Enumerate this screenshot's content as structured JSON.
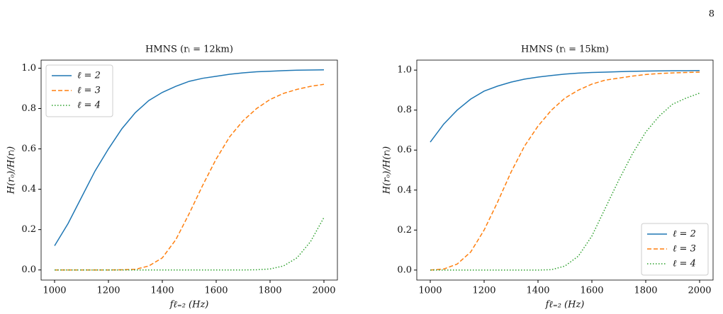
{
  "page_number": "8",
  "chart_data": [
    {
      "type": "line",
      "title": "HMNS (rᵢ = 12km)",
      "x_label": "fℓ₌₂ (Hz)",
      "y_label": "H(rₒ)/H(rᵢ)",
      "x": [
        1000,
        1050,
        1100,
        1150,
        1200,
        1250,
        1300,
        1350,
        1400,
        1450,
        1500,
        1550,
        1600,
        1650,
        1700,
        1750,
        1800,
        1850,
        1900,
        1950,
        2000
      ],
      "xlim": [
        950,
        2050
      ],
      "xticks": [
        1000,
        1200,
        1400,
        1600,
        1800,
        2000
      ],
      "ylim": [
        -0.05,
        1.04
      ],
      "yticks": [
        {
          "value": 0,
          "label": "0.0"
        },
        0.2,
        0.4,
        0.6,
        0.8,
        {
          "value": 1,
          "label": "1.0"
        }
      ],
      "legend": "upper left",
      "series": [
        {
          "name": "ℓ = 2",
          "color": "#1f77b4",
          "style": "solid",
          "values": [
            0.12,
            0.23,
            0.36,
            0.49,
            0.6,
            0.7,
            0.78,
            0.84,
            0.88,
            0.91,
            0.935,
            0.95,
            0.96,
            0.97,
            0.977,
            0.982,
            0.985,
            0.988,
            0.99,
            0.991,
            0.992
          ]
        },
        {
          "name": "ℓ = 3",
          "color": "#ff7f0e",
          "style": "dashed",
          "values": [
            0,
            0,
            0,
            0,
            0,
            0.001,
            0.003,
            0.02,
            0.06,
            0.15,
            0.28,
            0.42,
            0.55,
            0.66,
            0.74,
            0.8,
            0.845,
            0.875,
            0.895,
            0.91,
            0.92
          ]
        },
        {
          "name": "ℓ = 4",
          "color": "#2ca02c",
          "style": "dotted",
          "values": [
            0,
            0,
            0,
            0,
            0,
            0,
            0,
            0,
            0,
            0,
            0,
            0,
            0,
            0,
            0,
            0.001,
            0.005,
            0.02,
            0.06,
            0.14,
            0.26
          ]
        }
      ]
    },
    {
      "type": "line",
      "title": "HMNS (rᵢ = 15km)",
      "x_label": "fℓ₌₂ (Hz)",
      "y_label": "H(rₒ)/H(rᵢ)",
      "x": [
        1000,
        1050,
        1100,
        1150,
        1200,
        1250,
        1300,
        1350,
        1400,
        1450,
        1500,
        1550,
        1600,
        1650,
        1700,
        1750,
        1800,
        1850,
        1900,
        1950,
        2000
      ],
      "xlim": [
        950,
        2050
      ],
      "xticks": [
        1000,
        1200,
        1400,
        1600,
        1800,
        2000
      ],
      "ylim": [
        -0.05,
        1.05
      ],
      "yticks": [
        {
          "value": 0,
          "label": "0.0"
        },
        0.2,
        0.4,
        0.6,
        0.8,
        {
          "value": 1,
          "label": "1.0"
        }
      ],
      "legend": "lower right",
      "series": [
        {
          "name": "ℓ = 2",
          "color": "#1f77b4",
          "style": "solid",
          "values": [
            0.64,
            0.73,
            0.8,
            0.855,
            0.895,
            0.92,
            0.94,
            0.955,
            0.965,
            0.973,
            0.98,
            0.985,
            0.988,
            0.99,
            0.992,
            0.994,
            0.995,
            0.996,
            0.997,
            0.997,
            0.998
          ]
        },
        {
          "name": "ℓ = 3",
          "color": "#ff7f0e",
          "style": "dashed",
          "values": [
            0,
            0.005,
            0.03,
            0.09,
            0.2,
            0.34,
            0.49,
            0.62,
            0.72,
            0.8,
            0.86,
            0.9,
            0.93,
            0.95,
            0.96,
            0.97,
            0.978,
            0.983,
            0.986,
            0.988,
            0.99
          ]
        },
        {
          "name": "ℓ = 4",
          "color": "#2ca02c",
          "style": "dotted",
          "values": [
            0,
            0,
            0,
            0,
            0,
            0,
            0,
            0,
            0,
            0.002,
            0.02,
            0.07,
            0.17,
            0.31,
            0.45,
            0.58,
            0.69,
            0.77,
            0.83,
            0.86,
            0.885
          ]
        }
      ]
    }
  ]
}
